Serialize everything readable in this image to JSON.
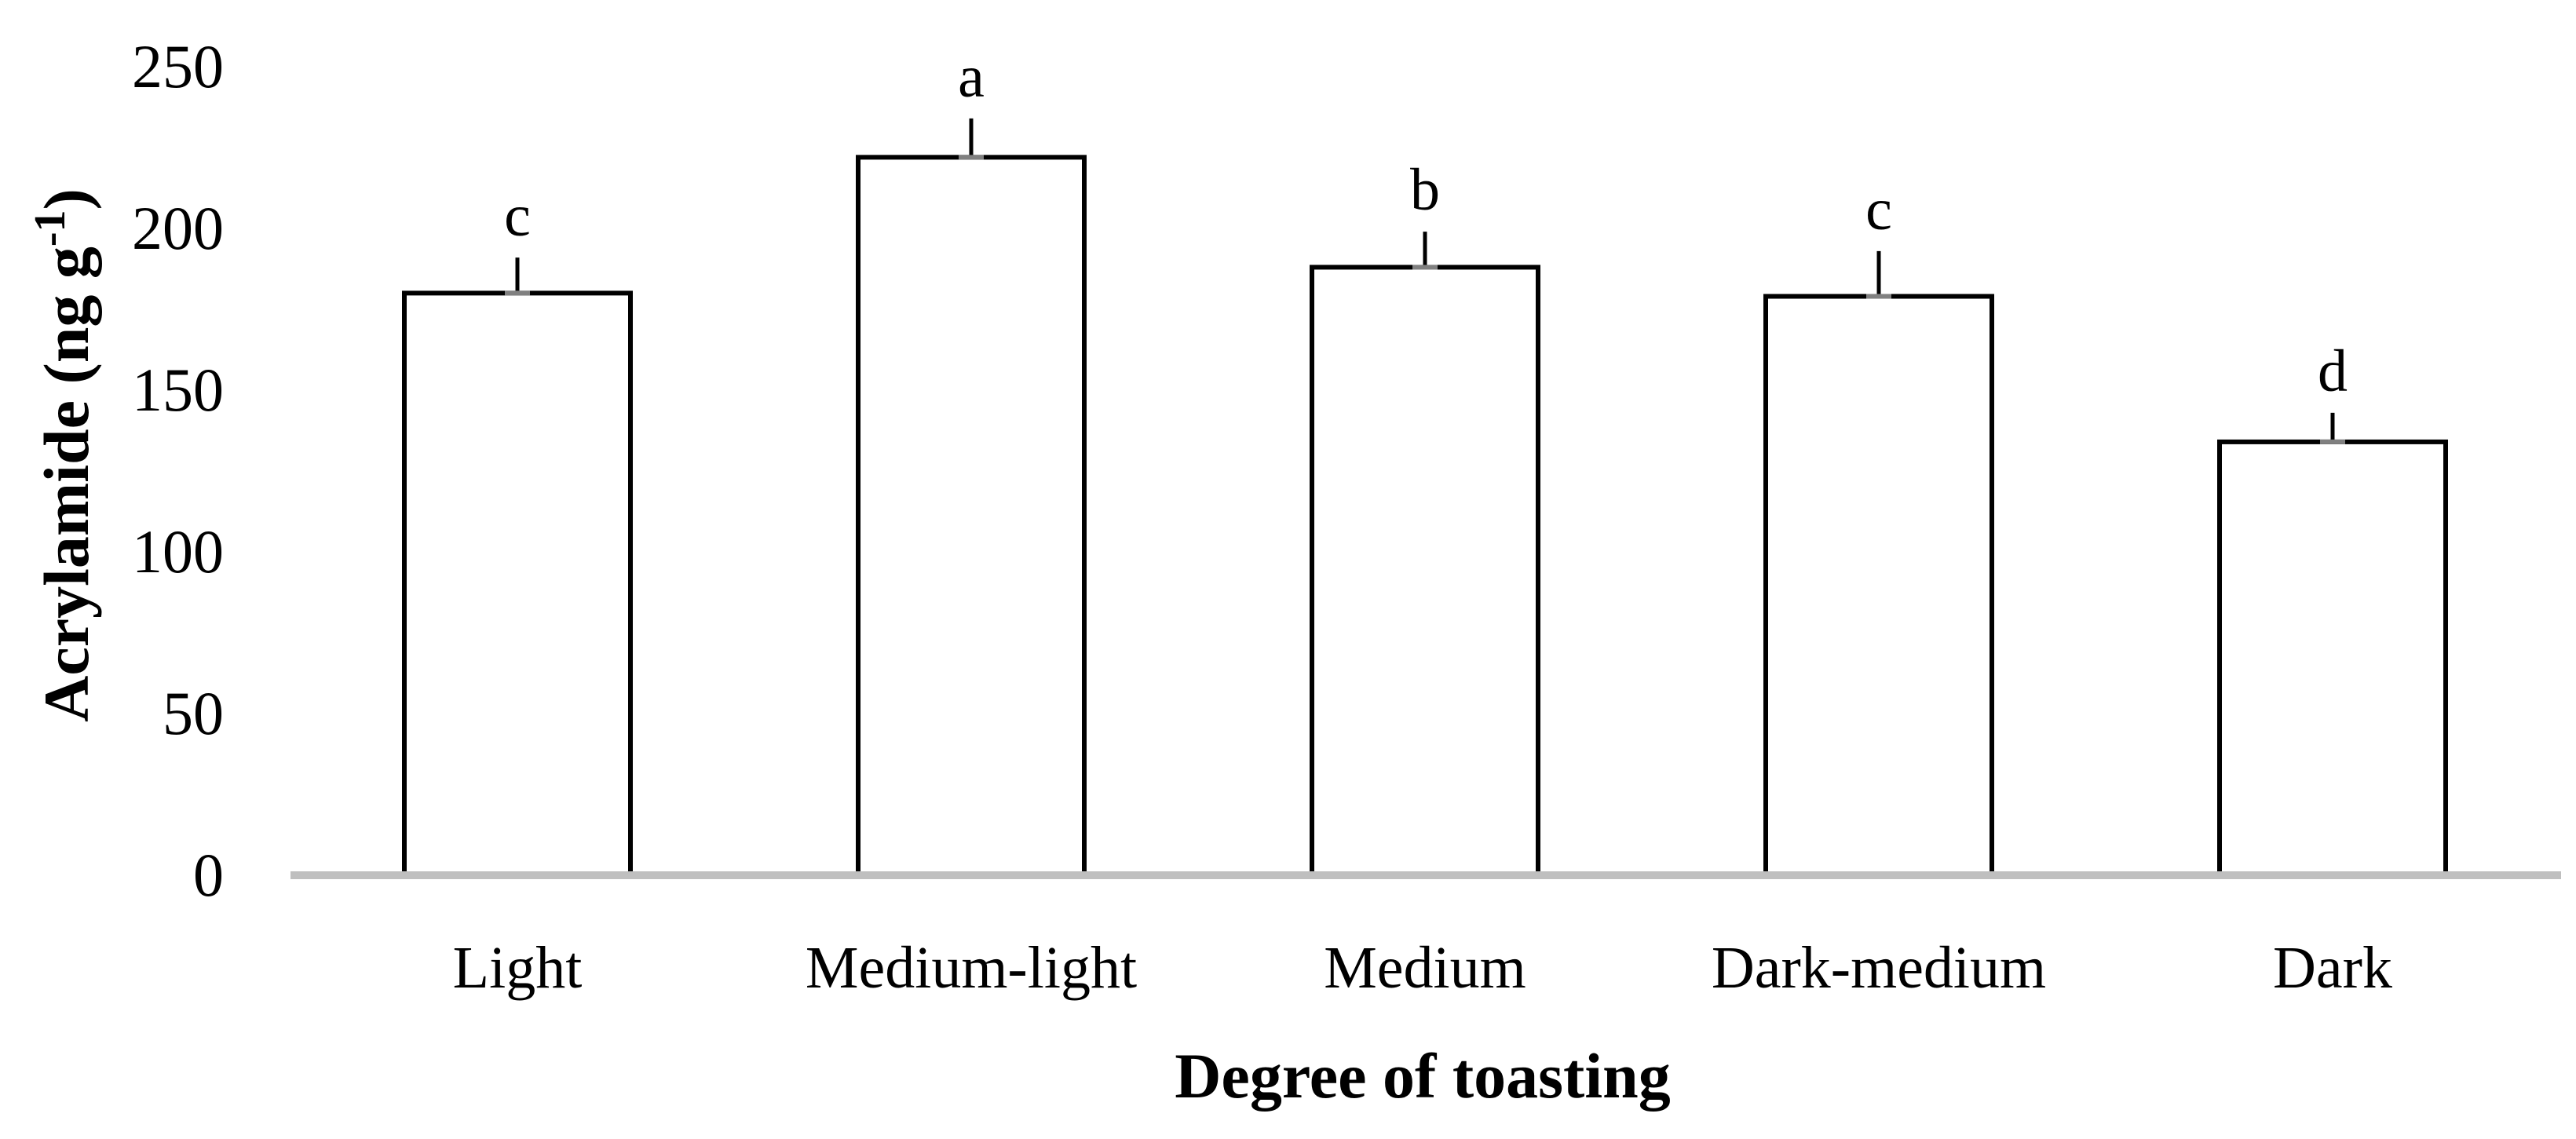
{
  "chart_data": {
    "type": "bar",
    "title": "",
    "xlabel": "Degree of toasting",
    "ylabel_main": "Acrylamide (ng g",
    "ylabel_sup": "-1",
    "ylabel_close": ")",
    "categories": [
      "Light",
      "Medium-light",
      "Medium",
      "Dark-medium",
      "Dark"
    ],
    "values": [
      180,
      222,
      188,
      179,
      134
    ],
    "error_upper": [
      11,
      12,
      11,
      14,
      9
    ],
    "significance": [
      "c",
      "a",
      "b",
      "c",
      "d"
    ],
    "ylim": [
      0,
      250
    ],
    "yticks": [
      "0",
      "50",
      "100",
      "150",
      "200",
      "250"
    ],
    "ytick_values": [
      0,
      50,
      100,
      150,
      200,
      250
    ],
    "grid": false,
    "legend": "none",
    "colors": {
      "bar_fill": "#ffffff",
      "bar_stroke": "#000000",
      "baseline": "#bfbfbf",
      "error_cap": "#808080"
    }
  }
}
